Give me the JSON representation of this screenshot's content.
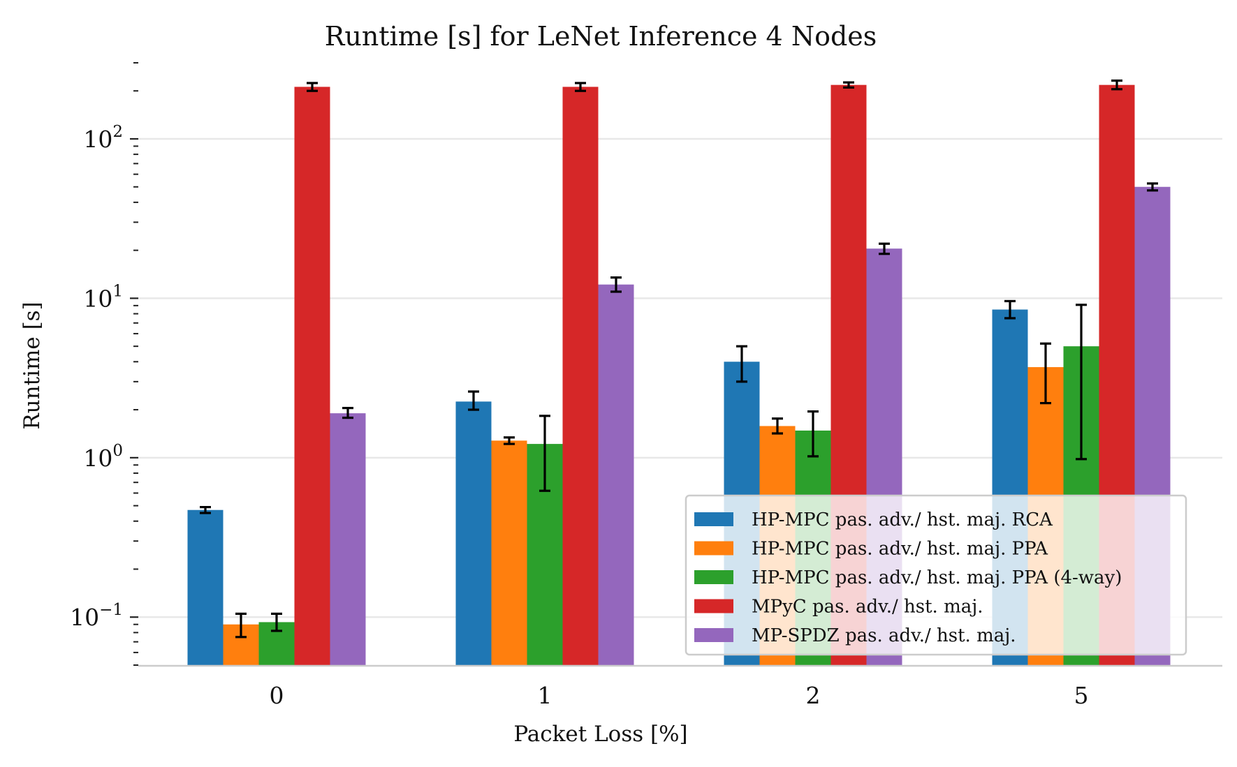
{
  "chart_data": {
    "type": "bar",
    "title": "Runtime [s] for LeNet Inference 4 Nodes",
    "xlabel": "Packet Loss [%]",
    "ylabel": "Runtime [s]",
    "yscale": "log",
    "ylim": [
      0.05,
      300
    ],
    "yticks": [
      {
        "value": 0.1,
        "mantissa": "10",
        "exponent": "−1"
      },
      {
        "value": 1,
        "mantissa": "10",
        "exponent": "0"
      },
      {
        "value": 10,
        "mantissa": "10",
        "exponent": "1"
      },
      {
        "value": 100,
        "mantissa": "10",
        "exponent": "2"
      }
    ],
    "grid": "horizontal",
    "legend_position": "bottom-right",
    "categories": [
      "0",
      "1",
      "2",
      "5"
    ],
    "series": [
      {
        "name": "HP-MPC pas. adv./ hst. maj. RCA",
        "color": "#1f77b4",
        "values": [
          0.47,
          2.25,
          4.0,
          8.5
        ],
        "err_low": [
          0.45,
          2.0,
          3.0,
          7.5
        ],
        "err_high": [
          0.49,
          2.6,
          5.0,
          9.6
        ]
      },
      {
        "name": "HP-MPC pas. adv./ hst. maj. PPA",
        "color": "#ff7f0e",
        "values": [
          0.09,
          1.28,
          1.58,
          3.7
        ],
        "err_low": [
          0.075,
          1.22,
          1.42,
          2.2
        ],
        "err_high": [
          0.105,
          1.34,
          1.76,
          5.2
        ]
      },
      {
        "name": "HP-MPC pas. adv./ hst. maj. PPA (4-way)",
        "color": "#2ca02c",
        "values": [
          0.093,
          1.22,
          1.48,
          5.0
        ],
        "err_low": [
          0.082,
          0.62,
          1.02,
          0.98
        ],
        "err_high": [
          0.105,
          1.83,
          1.95,
          9.1
        ]
      },
      {
        "name": "MPyC pas. adv./ hst. maj.",
        "color": "#d62728",
        "values": [
          212,
          212,
          218,
          218
        ],
        "err_low": [
          200,
          200,
          210,
          205
        ],
        "err_high": [
          224,
          224,
          226,
          232
        ]
      },
      {
        "name": "MP-SPDZ pas. adv./ hst. maj.",
        "color": "#9467bd",
        "values": [
          1.9,
          12.2,
          20.5,
          50.0
        ],
        "err_low": [
          1.78,
          11.0,
          19.0,
          47.5
        ],
        "err_high": [
          2.05,
          13.5,
          22.0,
          52.5
        ]
      }
    ]
  }
}
